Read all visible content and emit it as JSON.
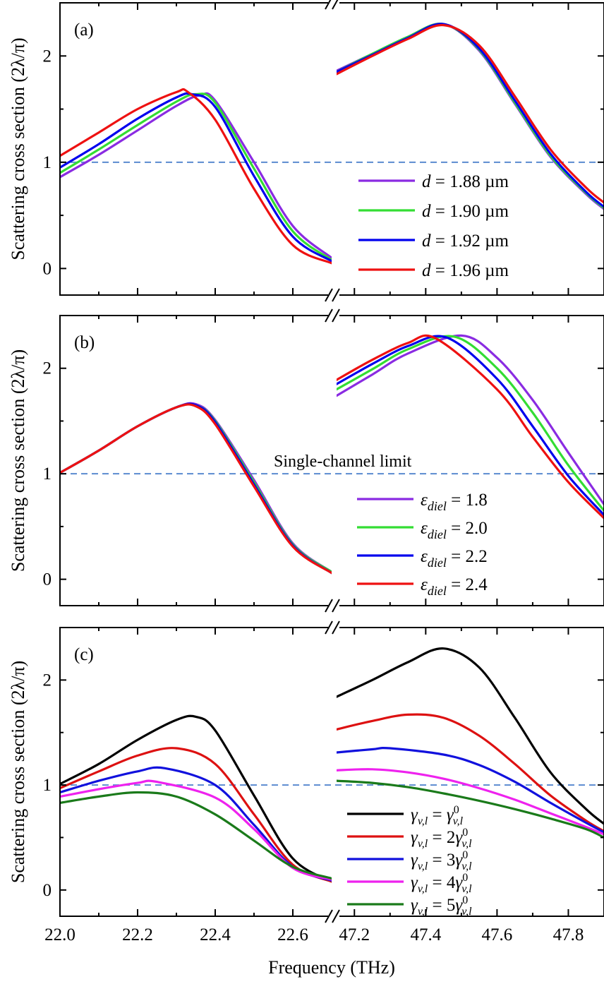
{
  "figure": {
    "xlabel": "Frequency (THz)",
    "ylabel": "Scattering cross section (2λ/π)"
  },
  "chart_data": [
    {
      "type": "line",
      "panel_label": "(a)",
      "ylabel": "Scattering cross section (2λ/π)",
      "xlabel": "",
      "broken_x_axis": true,
      "xlim": [
        [
          22.0,
          22.7
        ],
        [
          47.15,
          47.9
        ]
      ],
      "ylim": [
        -0.25,
        2.5
      ],
      "yticks": [
        0,
        1,
        2
      ],
      "xticks_left": [
        22.0,
        22.2,
        22.4,
        22.6
      ],
      "xticks_right": [
        47.2,
        47.4,
        47.6,
        47.8
      ],
      "show_x_tick_labels": false,
      "reference_line": {
        "y": 1,
        "style": "dashed",
        "color": "#5b8bd0",
        "label": ""
      },
      "legend_position": "lower-right",
      "series": [
        {
          "name_parts": [
            "d",
            " = 1.88 µm"
          ],
          "color": "#8a2be2",
          "left": {
            "x": [
              22.0,
              22.1,
              22.2,
              22.3,
              22.36,
              22.4,
              22.5,
              22.6,
              22.7
            ],
            "y": [
              0.86,
              1.07,
              1.3,
              1.53,
              1.63,
              1.58,
              1.0,
              0.4,
              0.1
            ]
          },
          "right": {
            "x": [
              47.15,
              47.25,
              47.35,
              47.45,
              47.55,
              47.65,
              47.75,
              47.85,
              47.9
            ],
            "y": [
              1.86,
              2.02,
              2.18,
              2.3,
              2.05,
              1.55,
              1.05,
              0.7,
              0.56
            ]
          }
        },
        {
          "name_parts": [
            "d",
            " = 1.90 µm"
          ],
          "color": "#33dd33",
          "left": {
            "x": [
              22.0,
              22.1,
              22.2,
              22.3,
              22.35,
              22.4,
              22.5,
              22.6,
              22.7
            ],
            "y": [
              0.9,
              1.12,
              1.35,
              1.57,
              1.64,
              1.56,
              0.94,
              0.35,
              0.08
            ]
          },
          "right": {
            "x": [
              47.15,
              47.25,
              47.35,
              47.45,
              47.55,
              47.65,
              47.75,
              47.85,
              47.9
            ],
            "y": [
              1.85,
              2.02,
              2.18,
              2.3,
              2.06,
              1.56,
              1.06,
              0.71,
              0.57
            ]
          }
        },
        {
          "name_parts": [
            "d",
            " = 1.92 µm"
          ],
          "color": "#0000ee",
          "left": {
            "x": [
              22.0,
              22.1,
              22.2,
              22.3,
              22.34,
              22.4,
              22.5,
              22.6,
              22.7
            ],
            "y": [
              0.95,
              1.17,
              1.41,
              1.61,
              1.64,
              1.52,
              0.87,
              0.3,
              0.07
            ]
          },
          "right": {
            "x": [
              47.15,
              47.25,
              47.35,
              47.45,
              47.55,
              47.65,
              47.75,
              47.85,
              47.9
            ],
            "y": [
              1.85,
              2.01,
              2.17,
              2.3,
              2.07,
              1.58,
              1.08,
              0.72,
              0.58
            ]
          }
        },
        {
          "name_parts": [
            "d",
            " = 1.96 µm"
          ],
          "color": "#ee1111",
          "left": {
            "x": [
              22.0,
              22.1,
              22.2,
              22.3,
              22.33,
              22.4,
              22.5,
              22.6,
              22.7
            ],
            "y": [
              1.06,
              1.28,
              1.5,
              1.66,
              1.66,
              1.4,
              0.75,
              0.22,
              0.05
            ]
          },
          "right": {
            "x": [
              47.15,
              47.25,
              47.35,
              47.45,
              47.55,
              47.65,
              47.75,
              47.85,
              47.9
            ],
            "y": [
              1.83,
              2.0,
              2.16,
              2.29,
              2.1,
              1.62,
              1.12,
              0.76,
              0.62
            ]
          }
        }
      ]
    },
    {
      "type": "line",
      "panel_label": "(b)",
      "ylabel": "Scattering cross section (2λ/π)",
      "xlabel": "",
      "broken_x_axis": true,
      "xlim": [
        [
          22.0,
          22.7
        ],
        [
          47.15,
          47.9
        ]
      ],
      "ylim": [
        -0.25,
        2.5
      ],
      "yticks": [
        0,
        1,
        2
      ],
      "xticks_left": [
        22.0,
        22.2,
        22.4,
        22.6
      ],
      "xticks_right": [
        47.2,
        47.4,
        47.6,
        47.8
      ],
      "show_x_tick_labels": false,
      "reference_line": {
        "y": 1,
        "style": "dashed",
        "color": "#5b8bd0",
        "label": "Single-channel limit"
      },
      "legend_position": "lower-right",
      "series": [
        {
          "name_parts": [
            "ε",
            "diel",
            " = 1.8"
          ],
          "color": "#8a2be2",
          "left": {
            "x": [
              22.0,
              22.1,
              22.2,
              22.3,
              22.35,
              22.4,
              22.5,
              22.6,
              22.7
            ],
            "y": [
              1.01,
              1.22,
              1.45,
              1.63,
              1.66,
              1.51,
              0.94,
              0.34,
              0.07
            ]
          },
          "right": {
            "x": [
              47.15,
              47.25,
              47.35,
              47.5,
              47.6,
              47.7,
              47.8,
              47.9
            ],
            "y": [
              1.74,
              1.94,
              2.14,
              2.31,
              2.1,
              1.7,
              1.2,
              0.71
            ]
          }
        },
        {
          "name_parts": [
            "ε",
            "diel",
            " = 2.0"
          ],
          "color": "#33dd33",
          "left": {
            "x": [
              22.0,
              22.1,
              22.2,
              22.3,
              22.35,
              22.4,
              22.5,
              22.6,
              22.7
            ],
            "y": [
              1.01,
              1.22,
              1.45,
              1.63,
              1.65,
              1.5,
              0.92,
              0.33,
              0.07
            ]
          },
          "right": {
            "x": [
              47.15,
              47.25,
              47.35,
              47.48,
              47.6,
              47.7,
              47.8,
              47.9
            ],
            "y": [
              1.8,
              1.99,
              2.18,
              2.3,
              2.0,
              1.58,
              1.08,
              0.65
            ]
          }
        },
        {
          "name_parts": [
            "ε",
            "diel",
            " = 2.2"
          ],
          "color": "#0000ee",
          "left": {
            "x": [
              22.0,
              22.1,
              22.2,
              22.3,
              22.35,
              22.4,
              22.5,
              22.6,
              22.7
            ],
            "y": [
              1.01,
              1.22,
              1.45,
              1.63,
              1.65,
              1.49,
              0.9,
              0.32,
              0.06
            ]
          },
          "right": {
            "x": [
              47.15,
              47.25,
              47.35,
              47.46,
              47.6,
              47.7,
              47.8,
              47.9
            ],
            "y": [
              1.85,
              2.04,
              2.21,
              2.29,
              1.9,
              1.45,
              0.98,
              0.61
            ]
          }
        },
        {
          "name_parts": [
            "ε",
            "diel",
            " = 2.4"
          ],
          "color": "#ee1111",
          "left": {
            "x": [
              22.0,
              22.1,
              22.2,
              22.3,
              22.35,
              22.4,
              22.5,
              22.6,
              22.7
            ],
            "y": [
              1.01,
              1.22,
              1.45,
              1.63,
              1.64,
              1.47,
              0.88,
              0.31,
              0.06
            ]
          },
          "right": {
            "x": [
              47.15,
              47.25,
              47.35,
              47.43,
              47.6,
              47.7,
              47.8,
              47.9
            ],
            "y": [
              1.89,
              2.08,
              2.24,
              2.28,
              1.8,
              1.35,
              0.92,
              0.58
            ]
          }
        }
      ]
    },
    {
      "type": "line",
      "panel_label": "(c)",
      "ylabel": "Scattering cross section (2λ/π)",
      "xlabel": "Frequency (THz)",
      "broken_x_axis": true,
      "xlim": [
        [
          22.0,
          22.7
        ],
        [
          47.15,
          47.9
        ]
      ],
      "ylim": [
        -0.25,
        2.5
      ],
      "yticks": [
        0,
        1,
        2
      ],
      "xticks_left": [
        22.0,
        22.2,
        22.4,
        22.6
      ],
      "xticks_right": [
        47.2,
        47.4,
        47.6,
        47.8
      ],
      "xtick_labels_left": [
        "22.0",
        "22.2",
        "22.4",
        "22.6"
      ],
      "xtick_labels_right": [
        "47.2",
        "47.4",
        "47.6",
        "47.8"
      ],
      "show_x_tick_labels": true,
      "reference_line": {
        "y": 1,
        "style": "dashed",
        "color": "#5b8bd0",
        "label": ""
      },
      "legend_position": "lower-right",
      "series": [
        {
          "name_parts": [
            "γ",
            "v,l",
            " = ",
            "",
            "γ",
            "0",
            "v,l"
          ],
          "color": "#000000",
          "left": {
            "x": [
              22.0,
              22.1,
              22.2,
              22.3,
              22.35,
              22.4,
              22.5,
              22.6,
              22.7
            ],
            "y": [
              1.01,
              1.2,
              1.43,
              1.62,
              1.65,
              1.52,
              0.9,
              0.3,
              0.08
            ]
          },
          "right": {
            "x": [
              47.15,
              47.25,
              47.35,
              47.45,
              47.55,
              47.65,
              47.75,
              47.85,
              47.9
            ],
            "y": [
              1.84,
              2.0,
              2.17,
              2.3,
              2.12,
              1.64,
              1.12,
              0.77,
              0.63
            ]
          }
        },
        {
          "name_parts": [
            "γ",
            "v,l",
            " = ",
            "2",
            "γ",
            "0",
            "v,l"
          ],
          "color": "#dd1111",
          "left": {
            "x": [
              22.0,
              22.1,
              22.2,
              22.3,
              22.4,
              22.5,
              22.6,
              22.7
            ],
            "y": [
              0.97,
              1.13,
              1.28,
              1.35,
              1.2,
              0.72,
              0.24,
              0.08
            ]
          },
          "right": {
            "x": [
              47.15,
              47.25,
              47.35,
              47.45,
              47.55,
              47.65,
              47.75,
              47.85,
              47.9
            ],
            "y": [
              1.53,
              1.61,
              1.67,
              1.64,
              1.47,
              1.2,
              0.9,
              0.66,
              0.56
            ]
          }
        },
        {
          "name_parts": [
            "γ",
            "v,l",
            " = ",
            "3",
            "γ",
            "0",
            "v,l"
          ],
          "color": "#1111dd",
          "left": {
            "x": [
              22.0,
              22.1,
              22.2,
              22.27,
              22.4,
              22.5,
              22.6,
              22.7
            ],
            "y": [
              0.93,
              1.04,
              1.13,
              1.16,
              1.0,
              0.62,
              0.22,
              0.09
            ]
          },
          "right": {
            "x": [
              47.15,
              47.25,
              47.3,
              47.45,
              47.55,
              47.65,
              47.75,
              47.85,
              47.9
            ],
            "y": [
              1.31,
              1.34,
              1.35,
              1.29,
              1.19,
              1.03,
              0.83,
              0.64,
              0.55
            ]
          }
        },
        {
          "name_parts": [
            "γ",
            "v,l",
            " = ",
            "4",
            "γ",
            "0",
            "v,l"
          ],
          "color": "#ee22ee",
          "left": {
            "x": [
              22.0,
              22.1,
              22.2,
              22.25,
              22.4,
              22.5,
              22.6,
              22.7
            ],
            "y": [
              0.89,
              0.96,
              1.02,
              1.03,
              0.88,
              0.58,
              0.21,
              0.1
            ]
          },
          "right": {
            "x": [
              47.15,
              47.25,
              47.35,
              47.45,
              47.55,
              47.65,
              47.75,
              47.85,
              47.9
            ],
            "y": [
              1.14,
              1.15,
              1.12,
              1.06,
              0.97,
              0.86,
              0.73,
              0.6,
              0.53
            ]
          }
        },
        {
          "name_parts": [
            "γ",
            "v,l",
            " = ",
            "5",
            "γ",
            "0",
            "v,l"
          ],
          "color": "#1a7a1a",
          "left": {
            "x": [
              22.0,
              22.1,
              22.2,
              22.3,
              22.4,
              22.5,
              22.6,
              22.7
            ],
            "y": [
              0.83,
              0.89,
              0.93,
              0.89,
              0.72,
              0.47,
              0.22,
              0.11
            ]
          },
          "right": {
            "x": [
              47.15,
              47.25,
              47.35,
              47.45,
              47.55,
              47.65,
              47.75,
              47.85,
              47.9
            ],
            "y": [
              1.04,
              1.02,
              0.98,
              0.92,
              0.85,
              0.77,
              0.68,
              0.58,
              0.5
            ]
          }
        }
      ]
    }
  ]
}
